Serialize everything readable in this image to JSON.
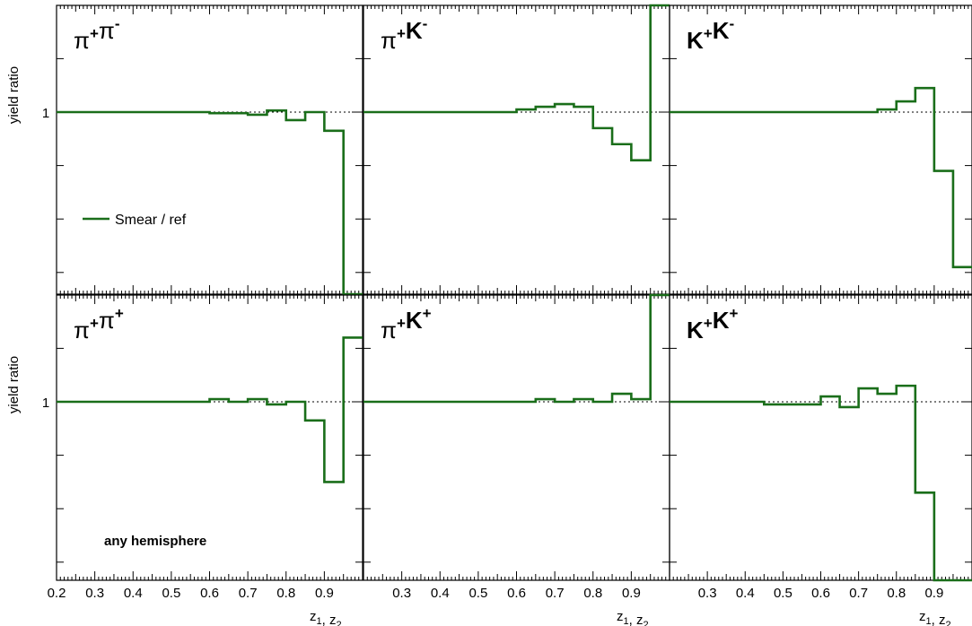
{
  "chart_data": {
    "type": "line",
    "layout": "2x3 grid of panels sharing axes",
    "step_style": "histogram",
    "ylabel": "yield ratio",
    "xlabel_main": "z",
    "xlabel_parts": [
      [
        "z",
        "1"
      ],
      [
        ", z",
        "2"
      ]
    ],
    "x_range": [
      0.2,
      1.0
    ],
    "y_range": [
      0.2,
      1.7
    ],
    "y_tick_labels": [
      {
        "value": 1.0,
        "label": "1"
      }
    ],
    "x_tick_labels": [
      {
        "value": 0.2,
        "label": "0.2"
      },
      {
        "value": 0.3,
        "label": "0.3"
      },
      {
        "value": 0.4,
        "label": "0.4"
      },
      {
        "value": 0.5,
        "label": "0.5"
      },
      {
        "value": 0.6,
        "label": "0.6"
      },
      {
        "value": 0.7,
        "label": "0.7"
      },
      {
        "value": 0.8,
        "label": "0.8"
      },
      {
        "value": 0.9,
        "label": "0.9"
      }
    ],
    "reference_line": 1.0,
    "series_color": "#1a6e1a",
    "legend": {
      "label": "Smear  / ref",
      "placement": "left-middle of top-left panel"
    },
    "annotation": "any hemisphere",
    "bin_edges": [
      0.2,
      0.25,
      0.3,
      0.35,
      0.4,
      0.45,
      0.5,
      0.55,
      0.6,
      0.65,
      0.7,
      0.75,
      0.8,
      0.85,
      0.9,
      0.95,
      1.0
    ],
    "panels": [
      {
        "title_parts": [
          [
            "π",
            "+"
          ],
          [
            "π",
            "-"
          ]
        ],
        "values": [
          1.0,
          1.0,
          1.0,
          1.0,
          1.0,
          1.0,
          1.0,
          1.0,
          0.998,
          0.998,
          0.995,
          1.003,
          0.985,
          1.0,
          0.965,
          0.52
        ]
      },
      {
        "title_parts": [
          [
            "π",
            "+"
          ],
          [
            "K",
            "-"
          ]
        ],
        "values": [
          1.0,
          1.0,
          1.0,
          1.0,
          1.0,
          1.0,
          1.0,
          1.0,
          1.005,
          1.01,
          1.015,
          1.01,
          0.97,
          0.94,
          0.91,
          1.75,
          0.2
        ]
      },
      {
        "title_parts": [
          [
            "K",
            "+"
          ],
          [
            "K",
            "-"
          ]
        ],
        "values": [
          1.0,
          1.0,
          1.0,
          1.0,
          1.0,
          1.0,
          1.0,
          1.0,
          1.0,
          1.0,
          1.0,
          1.005,
          1.02,
          1.045,
          0.89,
          0.71,
          1.75
        ]
      },
      {
        "title_parts": [
          [
            "π",
            "+"
          ],
          [
            "π",
            "+"
          ]
        ],
        "values": [
          1.0,
          1.0,
          1.0,
          1.0,
          1.0,
          1.0,
          1.0,
          1.0,
          1.005,
          1.0,
          1.005,
          0.995,
          1.0,
          0.965,
          0.85,
          1.12,
          0.2
        ]
      },
      {
        "title_parts": [
          [
            "π",
            "+"
          ],
          [
            "K",
            "+"
          ]
        ],
        "values": [
          1.0,
          1.0,
          1.0,
          1.0,
          1.0,
          1.0,
          1.0,
          1.0,
          1.0,
          1.005,
          1.0,
          1.005,
          1.0,
          1.015,
          1.005,
          1.7,
          0.2
        ]
      },
      {
        "title_parts": [
          [
            "K",
            "+"
          ],
          [
            "K",
            "+"
          ]
        ],
        "values": [
          1.0,
          1.0,
          1.0,
          1.0,
          1.0,
          0.995,
          0.995,
          0.995,
          1.01,
          0.99,
          1.025,
          1.015,
          1.03,
          0.83,
          0.2,
          0.2,
          1.7
        ]
      }
    ]
  }
}
